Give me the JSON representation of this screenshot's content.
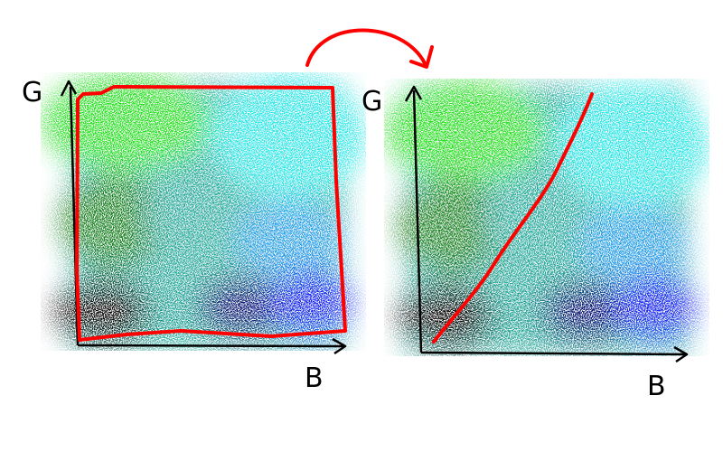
{
  "colors": {
    "annotation": "#ff0000",
    "axis": "#000000",
    "background": "#ffffff",
    "black": "#000000",
    "dark_green": "#0a7a12",
    "bright_green": "#22e01a",
    "cyan": "#26e6e6",
    "teal": "#1aa596",
    "sky_blue": "#1f9ae6",
    "navy": "#05086e",
    "blue": "#0c1ef0"
  },
  "left_panel": {
    "axis_y_label": "G",
    "axis_x_label": "B",
    "annotation": "rectangle-outline-around-cloud"
  },
  "right_panel": {
    "axis_y_label": "G",
    "axis_x_label": "B",
    "annotation": "diagonal-line-across-cloud"
  },
  "transition": {
    "icon": "curved-arrow-icon"
  }
}
